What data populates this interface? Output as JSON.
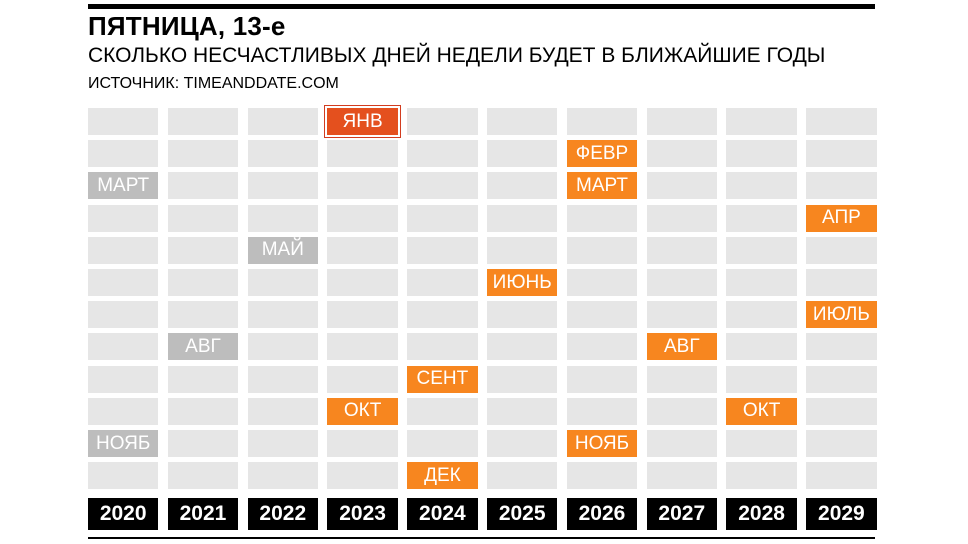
{
  "header": {
    "title": "ПЯТНИЦА, 13-е",
    "subtitle": "СКОЛЬКО НЕСЧАСТЛИВЫХ ДНЕЙ НЕДЕЛИ БУДЕТ В БЛИЖАЙШИЕ ГОДЫ",
    "source": "ИСТОЧНИК: TIMEANDDATE.COM"
  },
  "colors": {
    "past": "#bdbdbd",
    "future": "#f7861f",
    "current": "#e4501e",
    "empty": "#e6e6e6",
    "year_bg": "#000000"
  },
  "chart_data": {
    "type": "table",
    "years": [
      "2020",
      "2021",
      "2022",
      "2023",
      "2024",
      "2025",
      "2026",
      "2027",
      "2028",
      "2029"
    ],
    "months_count": 12,
    "events": [
      {
        "year": "2020",
        "month": 3,
        "label": "МАРТ",
        "status": "past"
      },
      {
        "year": "2020",
        "month": 11,
        "label": "НОЯБ",
        "status": "past"
      },
      {
        "year": "2021",
        "month": 8,
        "label": "АВГ",
        "status": "past"
      },
      {
        "year": "2022",
        "month": 5,
        "label": "МАЙ",
        "status": "past"
      },
      {
        "year": "2023",
        "month": 1,
        "label": "ЯНВ",
        "status": "current"
      },
      {
        "year": "2023",
        "month": 10,
        "label": "ОКТ",
        "status": "future"
      },
      {
        "year": "2024",
        "month": 9,
        "label": "СЕНТ",
        "status": "future"
      },
      {
        "year": "2024",
        "month": 12,
        "label": "ДЕК",
        "status": "future"
      },
      {
        "year": "2025",
        "month": 6,
        "label": "ИЮНЬ",
        "status": "future"
      },
      {
        "year": "2026",
        "month": 2,
        "label": "ФЕВР",
        "status": "future"
      },
      {
        "year": "2026",
        "month": 3,
        "label": "МАРТ",
        "status": "future"
      },
      {
        "year": "2026",
        "month": 11,
        "label": "НОЯБ",
        "status": "future"
      },
      {
        "year": "2027",
        "month": 8,
        "label": "АВГ",
        "status": "future"
      },
      {
        "year": "2028",
        "month": 10,
        "label": "ОКТ",
        "status": "future"
      },
      {
        "year": "2029",
        "month": 4,
        "label": "АПР",
        "status": "future"
      },
      {
        "year": "2029",
        "month": 7,
        "label": "ИЮЛЬ",
        "status": "future"
      }
    ]
  }
}
